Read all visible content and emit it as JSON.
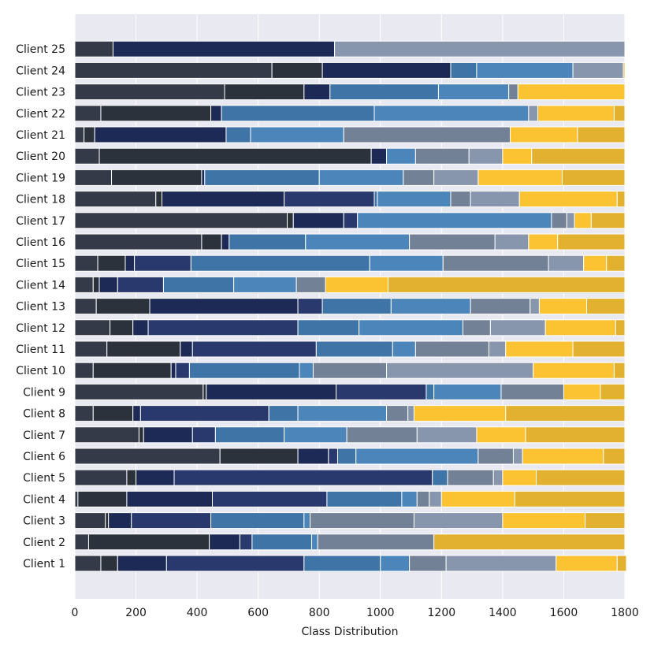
{
  "chart_data": {
    "type": "bar",
    "orientation": "horizontal",
    "stacked": true,
    "title": "",
    "xlabel": "Class Distribution",
    "ylabel": "",
    "xlim": [
      0,
      1800
    ],
    "xticks": [
      0,
      200,
      400,
      600,
      800,
      1000,
      1200,
      1400,
      1600,
      1800
    ],
    "grid": true,
    "legend": "none",
    "background": "#e9e9f1",
    "categories": [
      "Client 1",
      "Client 2",
      "Client 3",
      "Client 4",
      "Client 5",
      "Client 6",
      "Client 7",
      "Client 8",
      "Client 9",
      "Client 10",
      "Client 11",
      "Client 12",
      "Client 13",
      "Client 14",
      "Client 15",
      "Client 16",
      "Client 17",
      "Client 18",
      "Client 19",
      "Client 20",
      "Client 21",
      "Client 22",
      "Client 23",
      "Client 24",
      "Client 25"
    ],
    "class_colors": [
      "#353a48",
      "#2b323c",
      "#1c2a55",
      "#29396d",
      "#3e75a6",
      "#4b85ba",
      "#728195",
      "#8896ad",
      "#fbc332",
      "#e3b130"
    ],
    "segments": [
      [
        85,
        55,
        160,
        450,
        250,
        95,
        120,
        360,
        200,
        30
      ],
      [
        45,
        395,
        100,
        40,
        195,
        20,
        380,
        0,
        0,
        625
      ],
      [
        100,
        10,
        75,
        260,
        305,
        20,
        340,
        290,
        270,
        130
      ],
      [
        10,
        160,
        280,
        375,
        245,
        50,
        40,
        40,
        240,
        360
      ],
      [
        170,
        30,
        125,
        845,
        50,
        0,
        150,
        30,
        110,
        290
      ],
      [
        475,
        255,
        100,
        30,
        60,
        400,
        115,
        30,
        265,
        70
      ],
      [
        210,
        15,
        160,
        75,
        225,
        205,
        230,
        195,
        160,
        325
      ],
      [
        60,
        130,
        25,
        420,
        95,
        290,
        70,
        20,
        300,
        390
      ],
      [
        420,
        10,
        425,
        295,
        25,
        220,
        205,
        0,
        120,
        80
      ],
      [
        60,
        255,
        15,
        45,
        360,
        45,
        240,
        480,
        265,
        35
      ],
      [
        105,
        240,
        40,
        405,
        250,
        75,
        240,
        55,
        220,
        170
      ],
      [
        115,
        75,
        50,
        490,
        200,
        340,
        90,
        180,
        230,
        30
      ],
      [
        70,
        175,
        485,
        80,
        225,
        260,
        195,
        30,
        155,
        125
      ],
      [
        60,
        20,
        60,
        150,
        230,
        205,
        95,
        0,
        205,
        775
      ],
      [
        75,
        90,
        30,
        185,
        585,
        240,
        345,
        115,
        75,
        60
      ],
      [
        415,
        65,
        25,
        0,
        250,
        340,
        280,
        110,
        95,
        220
      ],
      [
        695,
        20,
        165,
        45,
        0,
        635,
        50,
        25,
        55,
        110
      ],
      [
        265,
        20,
        400,
        295,
        10,
        240,
        65,
        160,
        320,
        25
      ],
      [
        120,
        295,
        10,
        0,
        375,
        275,
        100,
        145,
        275,
        205
      ],
      [
        80,
        890,
        50,
        0,
        0,
        95,
        175,
        110,
        95,
        305
      ],
      [
        30,
        35,
        430,
        0,
        80,
        305,
        545,
        0,
        220,
        155
      ],
      [
        85,
        360,
        35,
        0,
        500,
        505,
        0,
        30,
        250,
        35
      ],
      [
        490,
        260,
        85,
        0,
        355,
        230,
        30,
        0,
        350,
        0
      ],
      [
        645,
        165,
        420,
        0,
        85,
        315,
        0,
        165,
        0,
        5
      ],
      [
        125,
        0,
        725,
        0,
        0,
        0,
        0,
        950,
        0,
        0
      ]
    ]
  }
}
